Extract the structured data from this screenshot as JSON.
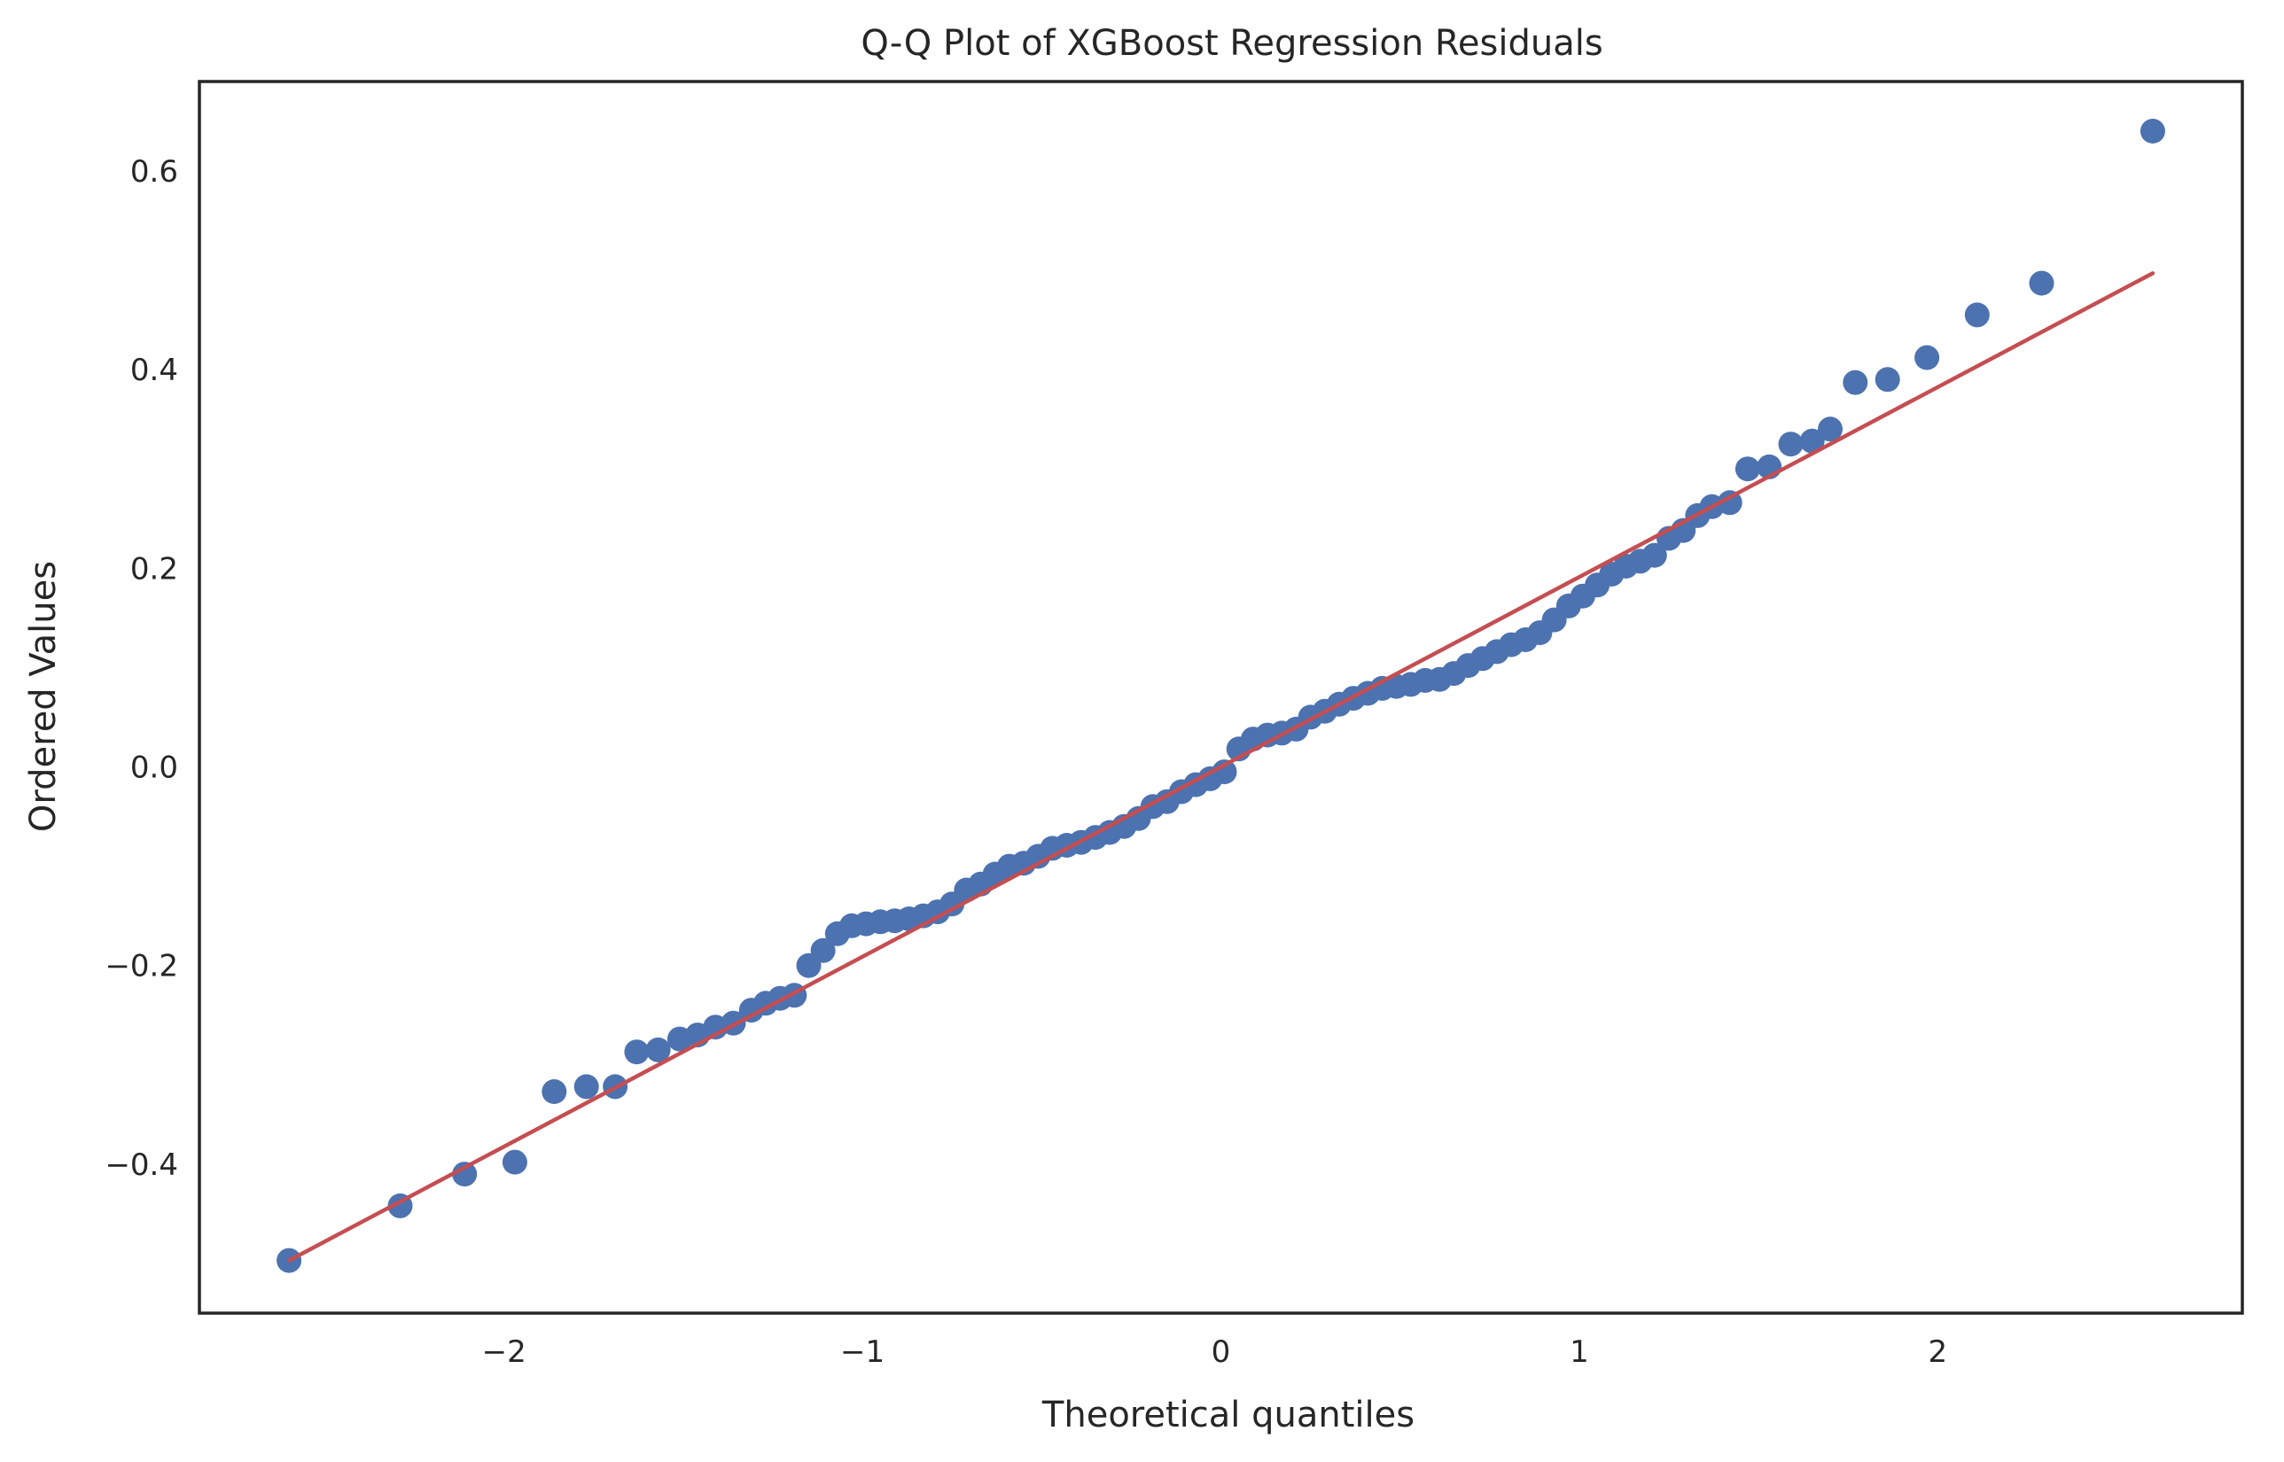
{
  "chart_data": {
    "type": "scatter",
    "title": "Q-Q Plot of XGBoost Regression Residuals",
    "xlabel": "Theoretical quantiles",
    "ylabel": "Ordered Values",
    "xlim": [
      -2.85,
      2.85
    ],
    "ylim": [
      -0.55,
      0.69
    ],
    "xticks": [
      -2,
      -1,
      0,
      1,
      2
    ],
    "xtick_labels": [
      "−2",
      "−1",
      "0",
      "1",
      "2"
    ],
    "yticks": [
      -0.4,
      -0.2,
      0.0,
      0.2,
      0.4,
      0.6
    ],
    "ytick_labels": [
      "−0.4",
      "−0.2",
      "0.0",
      "0.2",
      "0.4",
      "0.6"
    ],
    "grid": false,
    "series": [
      {
        "kind": "points",
        "color": "#4c72b0",
        "x": [
          -2.6,
          -2.29,
          -2.11,
          -1.97,
          -1.86,
          -1.77,
          -1.69,
          -1.63,
          -1.57,
          -1.51,
          -1.46,
          -1.41,
          -1.36,
          -1.31,
          -1.27,
          -1.23,
          -1.19,
          -1.15,
          -1.11,
          -1.07,
          -1.03,
          -0.99,
          -0.95,
          -0.91,
          -0.87,
          -0.83,
          -0.79,
          -0.75,
          -0.71,
          -0.67,
          -0.63,
          -0.59,
          -0.55,
          -0.51,
          -0.47,
          -0.43,
          -0.39,
          -0.35,
          -0.31,
          -0.27,
          -0.23,
          -0.19,
          -0.15,
          -0.11,
          -0.07,
          -0.03,
          0.01,
          0.05,
          0.09,
          0.13,
          0.17,
          0.21,
          0.25,
          0.29,
          0.33,
          0.37,
          0.41,
          0.45,
          0.49,
          0.53,
          0.57,
          0.61,
          0.65,
          0.69,
          0.73,
          0.77,
          0.81,
          0.85,
          0.89,
          0.93,
          0.97,
          1.01,
          1.05,
          1.09,
          1.13,
          1.17,
          1.21,
          1.25,
          1.29,
          1.33,
          1.37,
          1.42,
          1.47,
          1.53,
          1.59,
          1.65,
          1.7,
          1.77,
          1.86,
          1.97,
          2.11,
          2.29,
          2.6
        ],
        "y": [
          -0.497,
          -0.442,
          -0.41,
          -0.398,
          -0.327,
          -0.322,
          -0.322,
          -0.287,
          -0.285,
          -0.274,
          -0.27,
          -0.262,
          -0.258,
          -0.245,
          -0.238,
          -0.233,
          -0.23,
          -0.2,
          -0.185,
          -0.168,
          -0.16,
          -0.158,
          -0.156,
          -0.155,
          -0.153,
          -0.15,
          -0.146,
          -0.138,
          -0.124,
          -0.118,
          -0.108,
          -0.1,
          -0.097,
          -0.09,
          -0.082,
          -0.079,
          -0.076,
          -0.071,
          -0.066,
          -0.06,
          -0.052,
          -0.04,
          -0.035,
          -0.025,
          -0.018,
          -0.012,
          -0.005,
          0.018,
          0.028,
          0.032,
          0.034,
          0.038,
          0.05,
          0.056,
          0.063,
          0.069,
          0.074,
          0.079,
          0.081,
          0.083,
          0.087,
          0.088,
          0.094,
          0.102,
          0.109,
          0.116,
          0.123,
          0.128,
          0.135,
          0.148,
          0.162,
          0.172,
          0.183,
          0.194,
          0.202,
          0.207,
          0.213,
          0.23,
          0.238,
          0.253,
          0.262,
          0.266,
          0.3,
          0.302,
          0.325,
          0.328,
          0.34,
          0.387,
          0.39,
          0.412,
          0.455,
          0.487,
          0.64
        ]
      },
      {
        "kind": "line",
        "color": "#c44e52",
        "x": [
          -2.6,
          2.6
        ],
        "y": [
          -0.497,
          0.497
        ]
      }
    ]
  }
}
